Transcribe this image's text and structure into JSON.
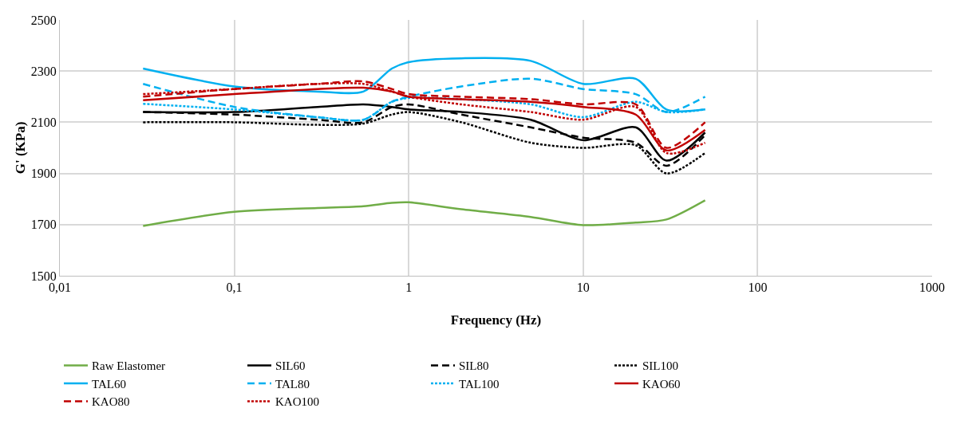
{
  "chart_data": {
    "type": "line",
    "xlabel": "Frequency (Hz)",
    "ylabel": "G' (KPa)",
    "log": "x",
    "grid": true,
    "legend": "bottom",
    "marker": "none",
    "xlim": [
      0.01,
      1000
    ],
    "xticks": [
      {
        "value": 0.01,
        "label": "0,01"
      },
      {
        "value": 0.1,
        "label": "0,1"
      },
      1,
      10,
      100,
      1000
    ],
    "ylim": [
      1500,
      2500
    ],
    "yticks": [
      1500,
      1700,
      1900,
      2100,
      2300,
      2500
    ],
    "x": [
      0.03,
      0.1,
      0.3,
      0.55,
      0.8,
      1,
      2,
      5,
      10,
      20,
      30,
      50
    ],
    "series": [
      {
        "name": "Raw Elastomer",
        "color": "#70ad47",
        "line_style": "solid",
        "values": [
          1695,
          1750,
          1765,
          1772,
          1785,
          1787,
          1760,
          1730,
          1698,
          1708,
          1720,
          1795
        ]
      },
      {
        "name": "SIL60",
        "color": "#000000",
        "line_style": "solid",
        "values": [
          2140,
          2140,
          2160,
          2170,
          2160,
          2150,
          2140,
          2110,
          2030,
          2080,
          1950,
          2060
        ]
      },
      {
        "name": "SIL80",
        "color": "#000000",
        "line_style": "dashed",
        "values": [
          2140,
          2130,
          2110,
          2100,
          2160,
          2170,
          2130,
          2080,
          2040,
          2020,
          1930,
          2050
        ]
      },
      {
        "name": "SIL100",
        "color": "#000000",
        "line_style": "dotted",
        "values": [
          2100,
          2100,
          2090,
          2095,
          2130,
          2140,
          2100,
          2020,
          2000,
          2010,
          1900,
          1980
        ]
      },
      {
        "name": "TAL60",
        "color": "#00b0f0",
        "line_style": "solid",
        "values": [
          2310,
          2240,
          2220,
          2220,
          2310,
          2335,
          2350,
          2340,
          2250,
          2270,
          2150,
          2150
        ]
      },
      {
        "name": "TAL80",
        "color": "#00b0f0",
        "line_style": "dashed",
        "values": [
          2250,
          2160,
          2120,
          2110,
          2180,
          2200,
          2240,
          2270,
          2230,
          2210,
          2140,
          2200
        ]
      },
      {
        "name": "TAL100",
        "color": "#00b0f0",
        "line_style": "dotted",
        "values": [
          2172,
          2150,
          2120,
          2110,
          2180,
          2195,
          2190,
          2170,
          2120,
          2180,
          2140,
          2150
        ]
      },
      {
        "name": "KAO60",
        "color": "#c00000",
        "line_style": "solid",
        "values": [
          2186,
          2210,
          2230,
          2235,
          2220,
          2200,
          2190,
          2180,
          2160,
          2130,
          1990,
          2070
        ]
      },
      {
        "name": "KAO80",
        "color": "#c00000",
        "line_style": "dashed",
        "values": [
          2200,
          2230,
          2250,
          2260,
          2230,
          2210,
          2200,
          2190,
          2170,
          2170,
          2000,
          2100
        ]
      },
      {
        "name": "KAO100",
        "color": "#c00000",
        "line_style": "dotted",
        "values": [
          2210,
          2230,
          2250,
          2250,
          2220,
          2200,
          2170,
          2140,
          2110,
          2160,
          1980,
          2020
        ]
      }
    ]
  }
}
